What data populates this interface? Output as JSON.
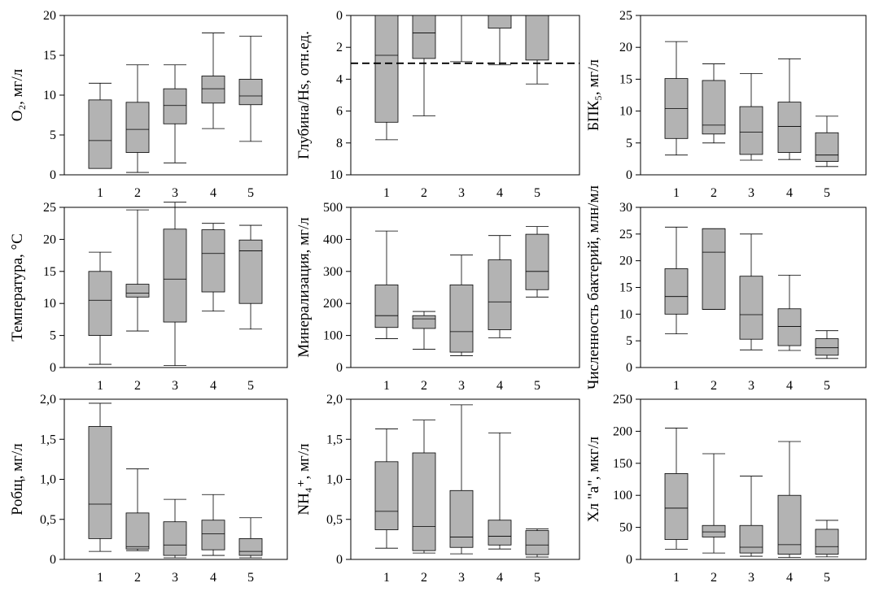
{
  "chart_data": [
    {
      "type": "box",
      "ylabel": "O₂, мг/л",
      "ylim": [
        0,
        20
      ],
      "yticks": [
        "0",
        "5",
        "10",
        "15",
        "20"
      ],
      "categories": [
        "1",
        "2",
        "3",
        "4",
        "5"
      ],
      "boxes": [
        {
          "min": 0.8,
          "q1": 0.8,
          "median": 4.3,
          "q3": 9.4,
          "max": 11.5
        },
        {
          "min": 0.3,
          "q1": 2.8,
          "median": 5.7,
          "q3": 9.1,
          "max": 13.8
        },
        {
          "min": 1.5,
          "q1": 6.4,
          "median": 8.7,
          "q3": 10.8,
          "max": 13.8
        },
        {
          "min": 5.8,
          "q1": 9.0,
          "median": 10.8,
          "q3": 12.4,
          "max": 17.8
        },
        {
          "min": 4.2,
          "q1": 8.8,
          "median": 9.9,
          "q3": 12.0,
          "max": 17.4
        }
      ]
    },
    {
      "type": "box",
      "ylabel": "Глубина/Hs, отн.ед.",
      "ylim": [
        0,
        10
      ],
      "inverted": true,
      "yticks": [
        "0",
        "2",
        "4",
        "6",
        "8",
        "10"
      ],
      "categories": [
        "1",
        "2",
        "3",
        "4",
        "5"
      ],
      "reference_line": 3,
      "boxes": [
        {
          "min": 0,
          "q1": 0,
          "median": 2.5,
          "q3": 6.7,
          "max": 7.8
        },
        {
          "min": 0,
          "q1": 0,
          "median": 1.1,
          "q3": 2.7,
          "max": 6.3
        },
        {
          "min": 0,
          "q1": 0,
          "median": 0,
          "q3": 0,
          "max": 2.9
        },
        {
          "min": 0,
          "q1": 0,
          "median": 0,
          "q3": 0.8,
          "max": 3.1
        },
        {
          "min": 0,
          "q1": 0,
          "median": 0,
          "q3": 2.8,
          "max": 4.3
        }
      ]
    },
    {
      "type": "box",
      "ylabel": "БПК₅, мг/л",
      "ylim": [
        0,
        25
      ],
      "yticks": [
        "0",
        "5",
        "10",
        "15",
        "20",
        "25"
      ],
      "categories": [
        "1",
        "2",
        "3",
        "4",
        "5"
      ],
      "boxes": [
        {
          "min": 3.1,
          "q1": 5.7,
          "median": 10.4,
          "q3": 15.1,
          "max": 20.9
        },
        {
          "min": 5.0,
          "q1": 6.4,
          "median": 7.8,
          "q3": 14.8,
          "max": 17.4
        },
        {
          "min": 2.3,
          "q1": 3.2,
          "median": 6.7,
          "q3": 10.7,
          "max": 15.9
        },
        {
          "min": 2.4,
          "q1": 3.5,
          "median": 7.6,
          "q3": 11.4,
          "max": 18.2
        },
        {
          "min": 1.3,
          "q1": 2.1,
          "median": 3.1,
          "q3": 6.6,
          "max": 9.2
        }
      ]
    },
    {
      "type": "box",
      "ylabel": "Температура, °С",
      "ylim": [
        0,
        25
      ],
      "yticks": [
        "0",
        "5",
        "10",
        "15",
        "20",
        "25"
      ],
      "categories": [
        "1",
        "2",
        "3",
        "4",
        "5"
      ],
      "boxes": [
        {
          "min": 0.5,
          "q1": 5.0,
          "median": 10.5,
          "q3": 15.0,
          "max": 18.0
        },
        {
          "min": 5.7,
          "q1": 11.0,
          "median": 11.6,
          "q3": 13.0,
          "max": 24.6
        },
        {
          "min": 0.3,
          "q1": 7.1,
          "median": 13.8,
          "q3": 21.6,
          "max": 25.8
        },
        {
          "min": 8.8,
          "q1": 11.8,
          "median": 17.8,
          "q3": 21.5,
          "max": 22.5
        },
        {
          "min": 6.0,
          "q1": 10.0,
          "median": 18.2,
          "q3": 19.9,
          "max": 22.2
        }
      ]
    },
    {
      "type": "box",
      "ylabel": "Минерализация, мг/л",
      "ylim": [
        0,
        500
      ],
      "yticks": [
        "0",
        "100",
        "200",
        "300",
        "400",
        "500"
      ],
      "categories": [
        "1",
        "2",
        "3",
        "4",
        "5"
      ],
      "boxes": [
        {
          "min": 90,
          "q1": 125,
          "median": 162,
          "q3": 258,
          "max": 426
        },
        {
          "min": 57,
          "q1": 122,
          "median": 152,
          "q3": 162,
          "max": 175
        },
        {
          "min": 37,
          "q1": 48,
          "median": 112,
          "q3": 258,
          "max": 351
        },
        {
          "min": 93,
          "q1": 118,
          "median": 205,
          "q3": 336,
          "max": 412
        },
        {
          "min": 220,
          "q1": 243,
          "median": 300,
          "q3": 416,
          "max": 440
        }
      ]
    },
    {
      "type": "box",
      "ylabel": "Численность бактерий, млн/мл",
      "ylim": [
        0,
        30
      ],
      "yticks": [
        "0",
        "5",
        "10",
        "15",
        "20",
        "25",
        "30"
      ],
      "categories": [
        "1",
        "2",
        "3",
        "4",
        "5"
      ],
      "boxes": [
        {
          "min": 6.3,
          "q1": 10.0,
          "median": 13.3,
          "q3": 18.5,
          "max": 26.3
        },
        {
          "min": 10.9,
          "q1": 10.9,
          "median": 21.6,
          "q3": 26.0,
          "max": 26.0
        },
        {
          "min": 3.3,
          "q1": 5.3,
          "median": 9.9,
          "q3": 17.1,
          "max": 25.0
        },
        {
          "min": 3.2,
          "q1": 4.1,
          "median": 7.7,
          "q3": 11.0,
          "max": 17.3
        },
        {
          "min": 1.7,
          "q1": 2.3,
          "median": 3.7,
          "q3": 5.4,
          "max": 6.9
        }
      ]
    },
    {
      "type": "box",
      "ylabel": "Pобщ, мг/л",
      "ylim": [
        0,
        2
      ],
      "yticks": [
        "0",
        "0,5",
        "1,0",
        "1,5",
        "2,0"
      ],
      "categories": [
        "1",
        "2",
        "3",
        "4",
        "5"
      ],
      "boxes": [
        {
          "min": 0.1,
          "q1": 0.26,
          "median": 0.69,
          "q3": 1.66,
          "max": 1.95
        },
        {
          "min": 0.11,
          "q1": 0.13,
          "median": 0.16,
          "q3": 0.58,
          "max": 1.13
        },
        {
          "min": 0.02,
          "q1": 0.05,
          "median": 0.18,
          "q3": 0.47,
          "max": 0.75
        },
        {
          "min": 0.05,
          "q1": 0.12,
          "median": 0.32,
          "q3": 0.49,
          "max": 0.81
        },
        {
          "min": 0.02,
          "q1": 0.05,
          "median": 0.1,
          "q3": 0.26,
          "max": 0.52
        }
      ]
    },
    {
      "type": "box",
      "ylabel": "NH₄⁺, мг/л",
      "ylim": [
        0,
        2
      ],
      "yticks": [
        "0",
        "0,5",
        "1,0",
        "1,5",
        "2,0"
      ],
      "categories": [
        "1",
        "2",
        "3",
        "4",
        "5"
      ],
      "boxes": [
        {
          "min": 0.14,
          "q1": 0.37,
          "median": 0.6,
          "q3": 1.22,
          "max": 1.63
        },
        {
          "min": 0.08,
          "q1": 0.11,
          "median": 0.41,
          "q3": 1.33,
          "max": 1.74
        },
        {
          "min": 0.07,
          "q1": 0.15,
          "median": 0.28,
          "q3": 0.86,
          "max": 1.93
        },
        {
          "min": 0.13,
          "q1": 0.18,
          "median": 0.29,
          "q3": 0.49,
          "max": 1.58
        },
        {
          "min": 0.03,
          "q1": 0.06,
          "median": 0.18,
          "q3": 0.36,
          "max": 0.38
        }
      ]
    },
    {
      "type": "box",
      "ylabel": "Хл \"а\", мкг/л",
      "ylim": [
        0,
        250
      ],
      "yticks": [
        "0",
        "50",
        "100",
        "150",
        "200",
        "250"
      ],
      "categories": [
        "1",
        "2",
        "3",
        "4",
        "5"
      ],
      "boxes": [
        {
          "min": 16,
          "q1": 31,
          "median": 80,
          "q3": 134,
          "max": 205
        },
        {
          "min": 10,
          "q1": 35,
          "median": 43,
          "q3": 53,
          "max": 165
        },
        {
          "min": 5,
          "q1": 10,
          "median": 19,
          "q3": 53,
          "max": 130
        },
        {
          "min": 3,
          "q1": 8,
          "median": 23,
          "q3": 100,
          "max": 184
        },
        {
          "min": 4,
          "q1": 8,
          "median": 20,
          "q3": 47,
          "max": 61
        }
      ]
    }
  ]
}
